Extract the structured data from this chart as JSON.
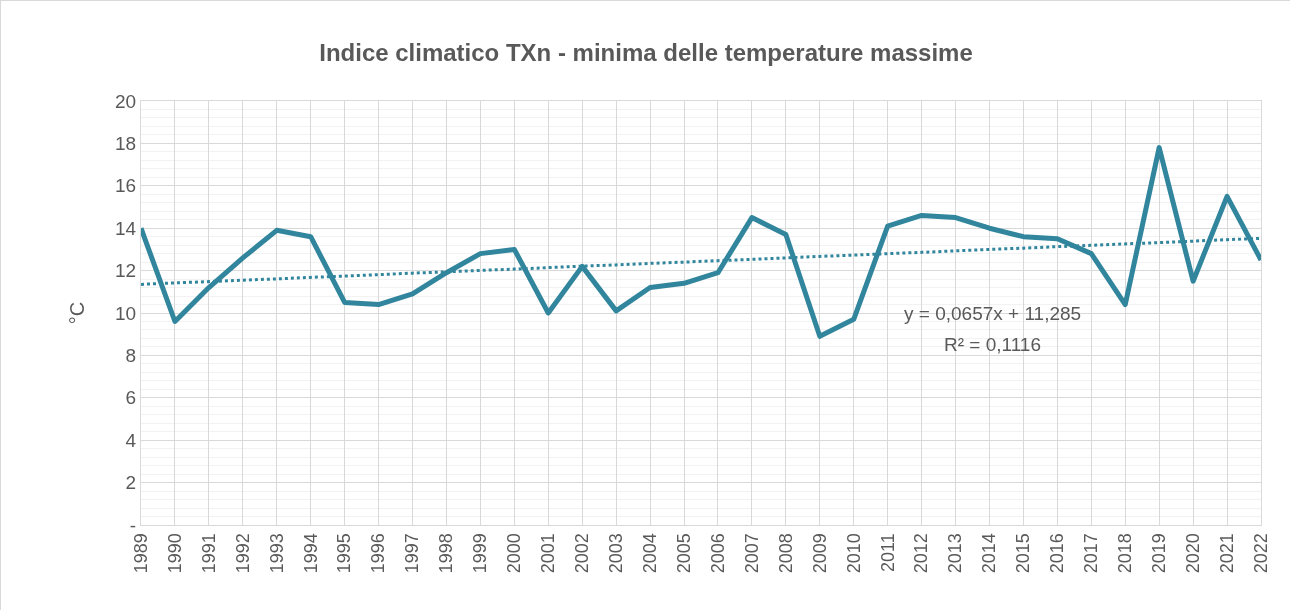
{
  "chart_data": {
    "type": "line",
    "title": "Indice climatico TXn - minima delle temperature massime",
    "ylabel": "°C",
    "categories": [
      "1989",
      "1990",
      "1991",
      "1992",
      "1993",
      "1994",
      "1995",
      "1996",
      "1997",
      "1998",
      "1999",
      "2000",
      "2001",
      "2002",
      "2003",
      "2004",
      "2005",
      "2006",
      "2007",
      "2008",
      "2009",
      "2010",
      "2011",
      "2012",
      "2013",
      "2014",
      "2015",
      "2016",
      "2017",
      "2018",
      "2019",
      "2020",
      "2021",
      "2022"
    ],
    "series": [
      {
        "color": "#31859c",
        "line_style": "solid",
        "values": [
          14.0,
          9.6,
          11.2,
          12.6,
          13.9,
          13.6,
          10.5,
          10.4,
          10.9,
          11.9,
          12.8,
          13.0,
          10.0,
          12.2,
          10.1,
          11.2,
          11.4,
          11.9,
          14.5,
          13.7,
          8.9,
          9.7,
          14.1,
          14.6,
          14.5,
          14.0,
          13.6,
          13.5,
          12.8,
          10.4,
          17.8,
          11.5,
          15.5,
          12.5
        ]
      },
      {
        "type": "line",
        "color": "#31859c",
        "line_style": "dotted",
        "values": [
          11.35,
          11.42,
          11.48,
          11.55,
          11.61,
          11.68,
          11.74,
          11.81,
          11.88,
          11.94,
          12.01,
          12.07,
          12.14,
          12.21,
          12.27,
          12.34,
          12.4,
          12.47,
          12.53,
          12.6,
          12.67,
          12.73,
          12.8,
          12.86,
          12.93,
          13.0,
          13.06,
          13.13,
          13.19,
          13.26,
          13.32,
          13.39,
          13.46,
          13.52
        ]
      }
    ],
    "ylim": [
      0,
      20
    ],
    "yticks": [
      {
        "value": 0,
        "label": "-"
      },
      2,
      4,
      6,
      8,
      10,
      12,
      14,
      16,
      18,
      20
    ],
    "grid": true,
    "marker": "none",
    "annotations": [
      "y = 0,0657x + 11,285",
      "R² = 0,1116"
    ]
  }
}
